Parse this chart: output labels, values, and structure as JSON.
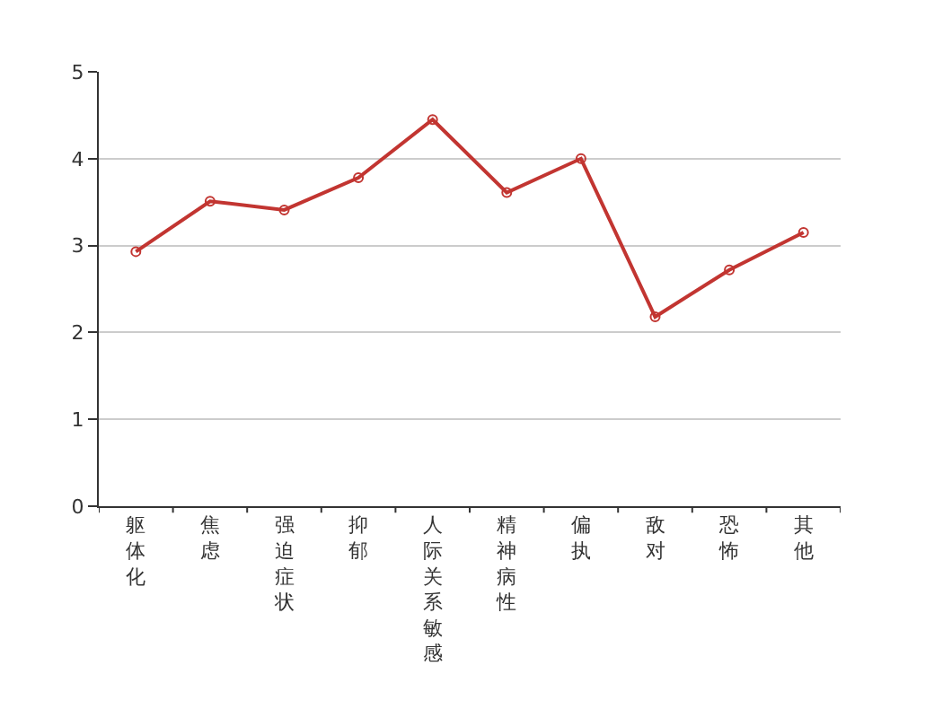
{
  "chart_data": {
    "type": "line",
    "categories": [
      "躯体化",
      "焦虑",
      "强迫症状",
      "抑郁",
      "人际关系敏感",
      "精神病性",
      "偏执",
      "敌对",
      "恐怖",
      "其他"
    ],
    "series": [
      {
        "color": "#c23531",
        "values": [
          2.93,
          3.51,
          3.41,
          3.78,
          4.45,
          3.61,
          4.0,
          2.18,
          2.72,
          3.15
        ]
      }
    ],
    "ylim": [
      0,
      5
    ],
    "yticks": [
      0,
      1,
      2,
      3,
      4,
      5
    ],
    "grid": "y",
    "marker": "circle",
    "line_style": "solid"
  }
}
